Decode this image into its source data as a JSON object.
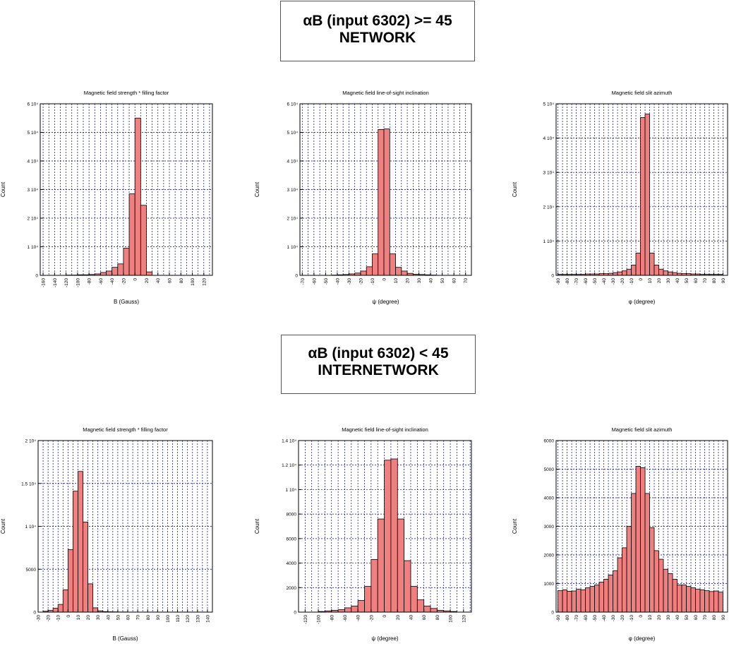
{
  "sections": [
    {
      "line1": "αB (input 6302) >= 45",
      "line2": "NETWORK"
    },
    {
      "line1": "αB (input 6302) < 45",
      "line2": "INTERNETWORK"
    }
  ],
  "style": {
    "bar_fill": "#f08080",
    "bar_stroke": "#000000",
    "grid_color": "#000080"
  },
  "chart_data": [
    {
      "type": "bar",
      "title": "Magnetic field strength * filling factor",
      "xlabel": "B (Gauss)",
      "ylabel": "Count",
      "xlim": [
        -165,
        135
      ],
      "ylim": [
        0,
        60000
      ],
      "bin_width": 10,
      "xticks": [
        -160,
        -140,
        -120,
        -100,
        -80,
        -60,
        -40,
        -20,
        0,
        20,
        40,
        60,
        80,
        100,
        120
      ],
      "yticks": [
        0,
        10000,
        20000,
        30000,
        40000,
        50000,
        60000
      ],
      "ytick_labels": [
        "0",
        "1 10⁴",
        "2 10⁴",
        "3 10⁴",
        "4 10⁴",
        "5 10⁴",
        "6 10⁴"
      ],
      "minor_step": 10,
      "bins": [
        [
          -125,
          0
        ],
        [
          -115,
          100
        ],
        [
          -105,
          100
        ],
        [
          -95,
          200
        ],
        [
          -85,
          200
        ],
        [
          -75,
          300
        ],
        [
          -65,
          500
        ],
        [
          -55,
          1000
        ],
        [
          -45,
          1500
        ],
        [
          -35,
          2800
        ],
        [
          -25,
          4000
        ],
        [
          -15,
          9500
        ],
        [
          -5,
          28500
        ],
        [
          5,
          55000
        ],
        [
          15,
          24500
        ],
        [
          25,
          1200
        ]
      ]
    },
    {
      "type": "bar",
      "title": "Magnetic field line-of-sight inclination",
      "xlabel": "ψ (degree)",
      "ylabel": "Count",
      "xlim": [
        -72,
        75
      ],
      "ylim": [
        0,
        60000
      ],
      "bin_width": 5,
      "xticks": [
        -70,
        -60,
        -50,
        -40,
        -30,
        -20,
        -10,
        0,
        10,
        20,
        30,
        40,
        50,
        60,
        70
      ],
      "yticks": [
        0,
        10000,
        20000,
        30000,
        40000,
        50000,
        60000
      ],
      "ytick_labels": [
        "0",
        "1 10⁴",
        "2 10⁴",
        "3 10⁴",
        "4 10⁴",
        "5 10⁴",
        "6 10⁴"
      ],
      "minor_step": 5,
      "bins": [
        [
          -42.5,
          100
        ],
        [
          -37.5,
          200
        ],
        [
          -32.5,
          300
        ],
        [
          -27.5,
          500
        ],
        [
          -22.5,
          800
        ],
        [
          -17.5,
          1500
        ],
        [
          -12.5,
          3000
        ],
        [
          -7.5,
          7500
        ],
        [
          -2.5,
          51000
        ],
        [
          2.5,
          51200
        ],
        [
          7.5,
          7500
        ],
        [
          12.5,
          2800
        ],
        [
          17.5,
          1500
        ],
        [
          22.5,
          700
        ],
        [
          27.5,
          400
        ],
        [
          32.5,
          300
        ],
        [
          37.5,
          200
        ],
        [
          42.5,
          100
        ]
      ]
    },
    {
      "type": "bar",
      "title": "Magnetic field slit azimuth",
      "xlabel": "φ (degree)",
      "ylabel": "Count",
      "xlim": [
        -92,
        95
      ],
      "ylim": [
        0,
        50000
      ],
      "bin_width": 5,
      "xticks": [
        -90,
        -80,
        -70,
        -60,
        -50,
        -40,
        -30,
        -20,
        -10,
        0,
        10,
        20,
        30,
        40,
        50,
        60,
        70,
        80,
        90
      ],
      "yticks": [
        0,
        10000,
        20000,
        30000,
        40000,
        50000
      ],
      "ytick_labels": [
        "0",
        "1 10⁴",
        "2 10⁴",
        "3 10⁴",
        "4 10⁴",
        "5 10⁴"
      ],
      "minor_step": 5,
      "bins": [
        [
          -87.5,
          300
        ],
        [
          -82.5,
          300
        ],
        [
          -77.5,
          300
        ],
        [
          -72.5,
          300
        ],
        [
          -67.5,
          300
        ],
        [
          -62.5,
          300
        ],
        [
          -57.5,
          400
        ],
        [
          -52.5,
          400
        ],
        [
          -47.5,
          400
        ],
        [
          -42.5,
          500
        ],
        [
          -37.5,
          500
        ],
        [
          -32.5,
          600
        ],
        [
          -27.5,
          800
        ],
        [
          -22.5,
          1000
        ],
        [
          -17.5,
          1300
        ],
        [
          -12.5,
          1800
        ],
        [
          -7.5,
          3000
        ],
        [
          -2.5,
          6500
        ],
        [
          2.5,
          46000
        ],
        [
          7.5,
          47000
        ],
        [
          12.5,
          6500
        ],
        [
          17.5,
          3000
        ],
        [
          22.5,
          1800
        ],
        [
          27.5,
          1300
        ],
        [
          32.5,
          1000
        ],
        [
          37.5,
          800
        ],
        [
          42.5,
          600
        ],
        [
          47.5,
          500
        ],
        [
          52.5,
          500
        ],
        [
          57.5,
          400
        ],
        [
          62.5,
          400
        ],
        [
          67.5,
          300
        ],
        [
          72.5,
          300
        ],
        [
          77.5,
          300
        ],
        [
          82.5,
          300
        ],
        [
          87.5,
          300
        ]
      ]
    },
    {
      "type": "bar",
      "title": "Magnetic field strength * filling factor",
      "xlabel": "B (Gauss)",
      "ylabel": "Count",
      "xlim": [
        -30,
        145
      ],
      "ylim": [
        0,
        20000
      ],
      "bin_width": 5,
      "xticks": [
        -30,
        -20,
        -10,
        0,
        10,
        20,
        30,
        40,
        50,
        60,
        70,
        80,
        90,
        100,
        110,
        120,
        130,
        140
      ],
      "yticks": [
        0,
        5000,
        10000,
        15000,
        20000
      ],
      "ytick_labels": [
        "0",
        "5000",
        "1 10⁴",
        "1.5 10⁴",
        "2 10⁴"
      ],
      "minor_step": 5,
      "bins": [
        [
          -22.5,
          100
        ],
        [
          -17.5,
          200
        ],
        [
          -12.5,
          450
        ],
        [
          -7.5,
          900
        ],
        [
          -2.5,
          2600
        ],
        [
          2.5,
          7300
        ],
        [
          7.5,
          14100
        ],
        [
          12.5,
          16400
        ],
        [
          17.5,
          10500
        ],
        [
          22.5,
          3300
        ],
        [
          27.5,
          500
        ],
        [
          32.5,
          150
        ],
        [
          37.5,
          60
        ],
        [
          42.5,
          40
        ],
        [
          47.5,
          30
        ],
        [
          52.5,
          20
        ],
        [
          57.5,
          20
        ],
        [
          62.5,
          10
        ],
        [
          67.5,
          10
        ],
        [
          72.5,
          10
        ],
        [
          77.5,
          10
        ],
        [
          82.5,
          10
        ],
        [
          87.5,
          10
        ],
        [
          92.5,
          10
        ],
        [
          97.5,
          10
        ],
        [
          102.5,
          10
        ],
        [
          107.5,
          10
        ],
        [
          112.5,
          10
        ],
        [
          117.5,
          10
        ],
        [
          122.5,
          10
        ],
        [
          127.5,
          10
        ],
        [
          132.5,
          10
        ]
      ]
    },
    {
      "type": "bar",
      "title": "Magnetic field line-of-sight inclination",
      "xlabel": "ψ (degree)",
      "ylabel": "Count",
      "xlim": [
        -130,
        132
      ],
      "ylim": [
        0,
        14000
      ],
      "bin_width": 10,
      "xticks": [
        -120,
        -100,
        -80,
        -60,
        -40,
        -20,
        0,
        20,
        40,
        60,
        80,
        100,
        120
      ],
      "yticks": [
        0,
        2000,
        4000,
        6000,
        8000,
        10000,
        12000,
        14000
      ],
      "ytick_labels": [
        "0",
        "2000",
        "4000",
        "6000",
        "8000",
        "1 10⁴",
        "1.2 10⁴",
        "1.4 10⁴"
      ],
      "minor_step": 10,
      "bins": [
        [
          -95,
          50
        ],
        [
          -85,
          100
        ],
        [
          -75,
          150
        ],
        [
          -65,
          200
        ],
        [
          -55,
          350
        ],
        [
          -45,
          500
        ],
        [
          -35,
          950
        ],
        [
          -25,
          2100
        ],
        [
          -15,
          4300
        ],
        [
          -5,
          7600
        ],
        [
          5,
          12400
        ],
        [
          15,
          12500
        ],
        [
          25,
          7600
        ],
        [
          35,
          4200
        ],
        [
          45,
          2100
        ],
        [
          55,
          1000
        ],
        [
          65,
          500
        ],
        [
          75,
          300
        ],
        [
          85,
          150
        ],
        [
          95,
          100
        ],
        [
          105,
          50
        ]
      ]
    },
    {
      "type": "bar",
      "title": "Magnetic field slit azimuth",
      "xlabel": "φ (degree)",
      "ylabel": "Count",
      "xlim": [
        -92,
        95
      ],
      "ylim": [
        0,
        6000
      ],
      "bin_width": 5,
      "xticks": [
        -90,
        -80,
        -70,
        -60,
        -50,
        -40,
        -30,
        -20,
        -10,
        0,
        10,
        20,
        30,
        40,
        50,
        60,
        70,
        80,
        90
      ],
      "yticks": [
        0,
        1000,
        2000,
        3000,
        4000,
        5000,
        6000
      ],
      "ytick_labels": [
        "0",
        "1000",
        "2000",
        "3000",
        "4000",
        "5000",
        "6000"
      ],
      "minor_step": 5,
      "bins": [
        [
          -87.5,
          750
        ],
        [
          -82.5,
          780
        ],
        [
          -77.5,
          730
        ],
        [
          -72.5,
          740
        ],
        [
          -67.5,
          800
        ],
        [
          -62.5,
          780
        ],
        [
          -57.5,
          850
        ],
        [
          -52.5,
          900
        ],
        [
          -47.5,
          950
        ],
        [
          -42.5,
          1050
        ],
        [
          -37.5,
          1150
        ],
        [
          -32.5,
          1300
        ],
        [
          -27.5,
          1450
        ],
        [
          -22.5,
          1900
        ],
        [
          -17.5,
          2250
        ],
        [
          -12.5,
          3000
        ],
        [
          -7.5,
          4150
        ],
        [
          -2.5,
          5100
        ],
        [
          2.5,
          5050
        ],
        [
          7.5,
          4150
        ],
        [
          12.5,
          2950
        ],
        [
          17.5,
          2150
        ],
        [
          22.5,
          1850
        ],
        [
          27.5,
          1500
        ],
        [
          32.5,
          1350
        ],
        [
          37.5,
          1150
        ],
        [
          42.5,
          950
        ],
        [
          47.5,
          950
        ],
        [
          52.5,
          900
        ],
        [
          57.5,
          850
        ],
        [
          62.5,
          800
        ],
        [
          67.5,
          780
        ],
        [
          72.5,
          750
        ],
        [
          77.5,
          720
        ],
        [
          82.5,
          740
        ],
        [
          87.5,
          700
        ]
      ]
    }
  ]
}
